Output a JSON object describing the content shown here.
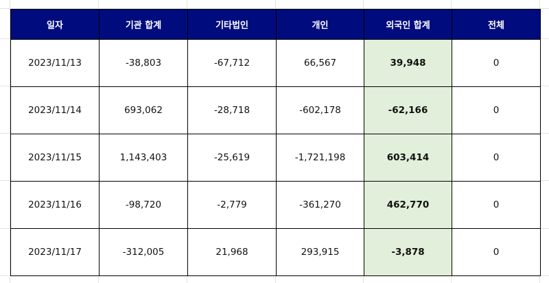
{
  "headers": [
    "일자",
    "기관 합계",
    "기타법인",
    "개인",
    "외국인 합계",
    "전체"
  ],
  "rows": [
    [
      "2023/11/13",
      "-38,803",
      "-67,712",
      "66,567",
      "39,948",
      "0"
    ],
    [
      "2023/11/14",
      "693,062",
      "-28,718",
      "-602,178",
      "-62,166",
      "0"
    ],
    [
      "2023/11/15",
      "1,143,403",
      "-25,619",
      "-1,721,198",
      "603,414",
      "0"
    ],
    [
      "2023/11/16",
      "-98,720",
      "-2,779",
      "-361,270",
      "462,770",
      "0"
    ],
    [
      "2023/11/17",
      "-312,005",
      "21,968",
      "293,915",
      "-3,878",
      "0"
    ]
  ],
  "colors": {
    "header_bg": "#000c7e",
    "header_text": "#ffffff",
    "highlight_column_bg": "#e2efda",
    "border": "#000000",
    "sheet_gridline": "#e2e2e2"
  }
}
